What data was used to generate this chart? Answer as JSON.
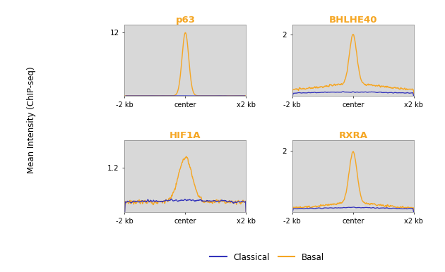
{
  "titles": [
    "p63",
    "BHLHE40",
    "HIF1A",
    "RXRA"
  ],
  "title_color": "#F5A623",
  "basal_color": "#F5A623",
  "classical_color": "#3333BB",
  "background_color": "#D8D8D8",
  "ylabel": "Mean Intensity (ChIP-seq)",
  "xlim": [
    -2000,
    2000
  ],
  "yticks": {
    "p63": [
      12
    ],
    "BHLHE40": [
      2
    ],
    "HIF1A": [
      1.2
    ],
    "RXRA": [
      2
    ]
  },
  "ylim": {
    "p63": [
      0.45,
      13.5
    ],
    "BHLHE40": [
      0.2,
      2.3
    ],
    "HIF1A": [
      0.45,
      1.65
    ],
    "RXRA": [
      0.2,
      2.3
    ]
  },
  "legend_labels": [
    "Classical",
    "Basal"
  ],
  "x_tick_positions": [
    -2000,
    0,
    2000
  ],
  "x_tick_labels": [
    "-2 kb",
    "center",
    "x2 kb"
  ],
  "figsize": [
    6.3,
    3.86
  ],
  "dpi": 100
}
